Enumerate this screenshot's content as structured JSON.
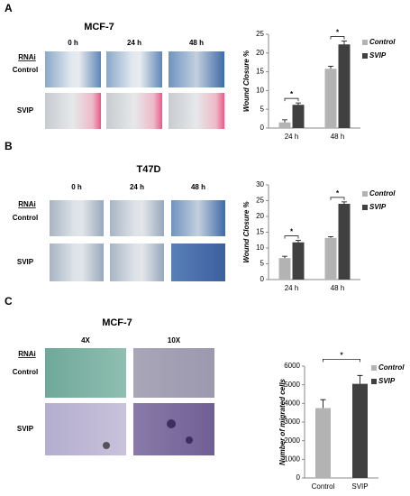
{
  "panels": [
    {
      "letter": "A",
      "title": "MCF-7",
      "row_header": "RNAi",
      "columns": [
        "0 h",
        "24 h",
        "48 h"
      ],
      "rows": [
        "Control",
        "SVIP"
      ]
    },
    {
      "letter": "B",
      "title": "T47D",
      "row_header": "RNAi",
      "columns": [
        "0 h",
        "24 h",
        "48 h"
      ],
      "rows": [
        "Control",
        "SVIP"
      ]
    },
    {
      "letter": "C",
      "title": "MCF-7",
      "row_header": "RNAi",
      "columns": [
        "4X",
        "10X"
      ],
      "rows": [
        "Control",
        "SVIP"
      ]
    }
  ],
  "chart_data": [
    {
      "type": "bar",
      "ylabel": "Wound Closure %",
      "categories": [
        "24 h",
        "48 h"
      ],
      "series": [
        {
          "name": "Control",
          "color": "#b3b3b3",
          "values": [
            1.5,
            15.8
          ],
          "errors": [
            0.7,
            0.7
          ]
        },
        {
          "name": "SVIP",
          "color": "#404040",
          "values": [
            6.2,
            22.3
          ],
          "errors": [
            0.5,
            0.9
          ]
        }
      ],
      "ylim": [
        0,
        25
      ],
      "yticks": [
        0,
        5,
        10,
        15,
        20,
        25
      ],
      "annotations": [
        "*",
        "*"
      ]
    },
    {
      "type": "bar",
      "ylabel": "Wound Closure %",
      "categories": [
        "24 h",
        "48 h"
      ],
      "series": [
        {
          "name": "Control",
          "color": "#b3b3b3",
          "values": [
            6.8,
            13.2
          ],
          "errors": [
            0.6,
            0.4
          ]
        },
        {
          "name": "SVIP",
          "color": "#404040",
          "values": [
            11.8,
            24
          ],
          "errors": [
            0.6,
            0.6
          ]
        }
      ],
      "ylim": [
        0,
        30
      ],
      "yticks": [
        0,
        5,
        10,
        15,
        20,
        25,
        30
      ],
      "annotations": [
        "*",
        "*"
      ]
    },
    {
      "type": "bar",
      "ylabel": "Number of migrated cells",
      "categories": [
        "Control",
        "SVIP"
      ],
      "series": [
        {
          "name": "Control",
          "color": "#b3b3b3",
          "values": [
            3750,
            null
          ],
          "errors": [
            450,
            null
          ]
        },
        {
          "name": "SVIP",
          "color": "#404040",
          "values": [
            null,
            5050
          ],
          "errors": [
            null,
            450
          ]
        }
      ],
      "ylim": [
        0,
        6000
      ],
      "yticks": [
        0,
        1000,
        2000,
        3000,
        4000,
        5000,
        6000
      ],
      "annotations": [
        "*"
      ]
    }
  ]
}
